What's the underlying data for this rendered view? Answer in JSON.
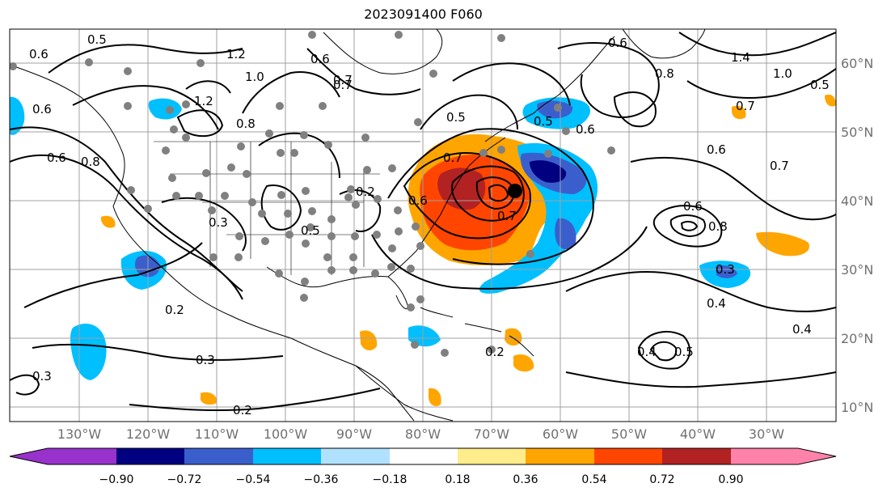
{
  "title": "2023091400 F060",
  "map": {
    "lon_labels": [
      "130°W",
      "120°W",
      "110°W",
      "100°W",
      "90°W",
      "80°W",
      "70°W",
      "60°W",
      "50°W",
      "40°W",
      "30°W"
    ],
    "lat_labels": [
      "60°N",
      "50°N",
      "40°N",
      "30°N",
      "20°N",
      "10°N"
    ],
    "contour_labels": [
      "0.5",
      "0.6",
      "0.6",
      "1.2",
      "1.0",
      "0.6",
      "0.7",
      "0.8",
      "1.2",
      "0.6",
      "0.8",
      "0.2",
      "0.3",
      "0.5",
      "0.5",
      "0.6",
      "0.7",
      "0.7",
      "0.6",
      "0.6",
      "0.4",
      "0.8",
      "1.4",
      "1.0",
      "0.5",
      "0.7",
      "0.6",
      "0.7",
      "0.6",
      "0.8",
      "0.3",
      "0.4",
      "0.5",
      "0.4",
      "0.2",
      "0.3",
      "0.3",
      "0.2",
      "0.2",
      "0.7",
      "0.5"
    ]
  },
  "colorbar": {
    "ticks": [
      "−0.90",
      "−0.72",
      "−0.54",
      "−0.36",
      "−0.18",
      "0.18",
      "0.36",
      "0.54",
      "0.72",
      "0.90"
    ],
    "colors": [
      "#9932cc",
      "#000080",
      "#3a5fcd",
      "#00bfff",
      "#b0e2ff",
      "#ffffff",
      "#ffec8b",
      "#ffa500",
      "#ff4500",
      "#b22222",
      "#ff82ab"
    ]
  }
}
